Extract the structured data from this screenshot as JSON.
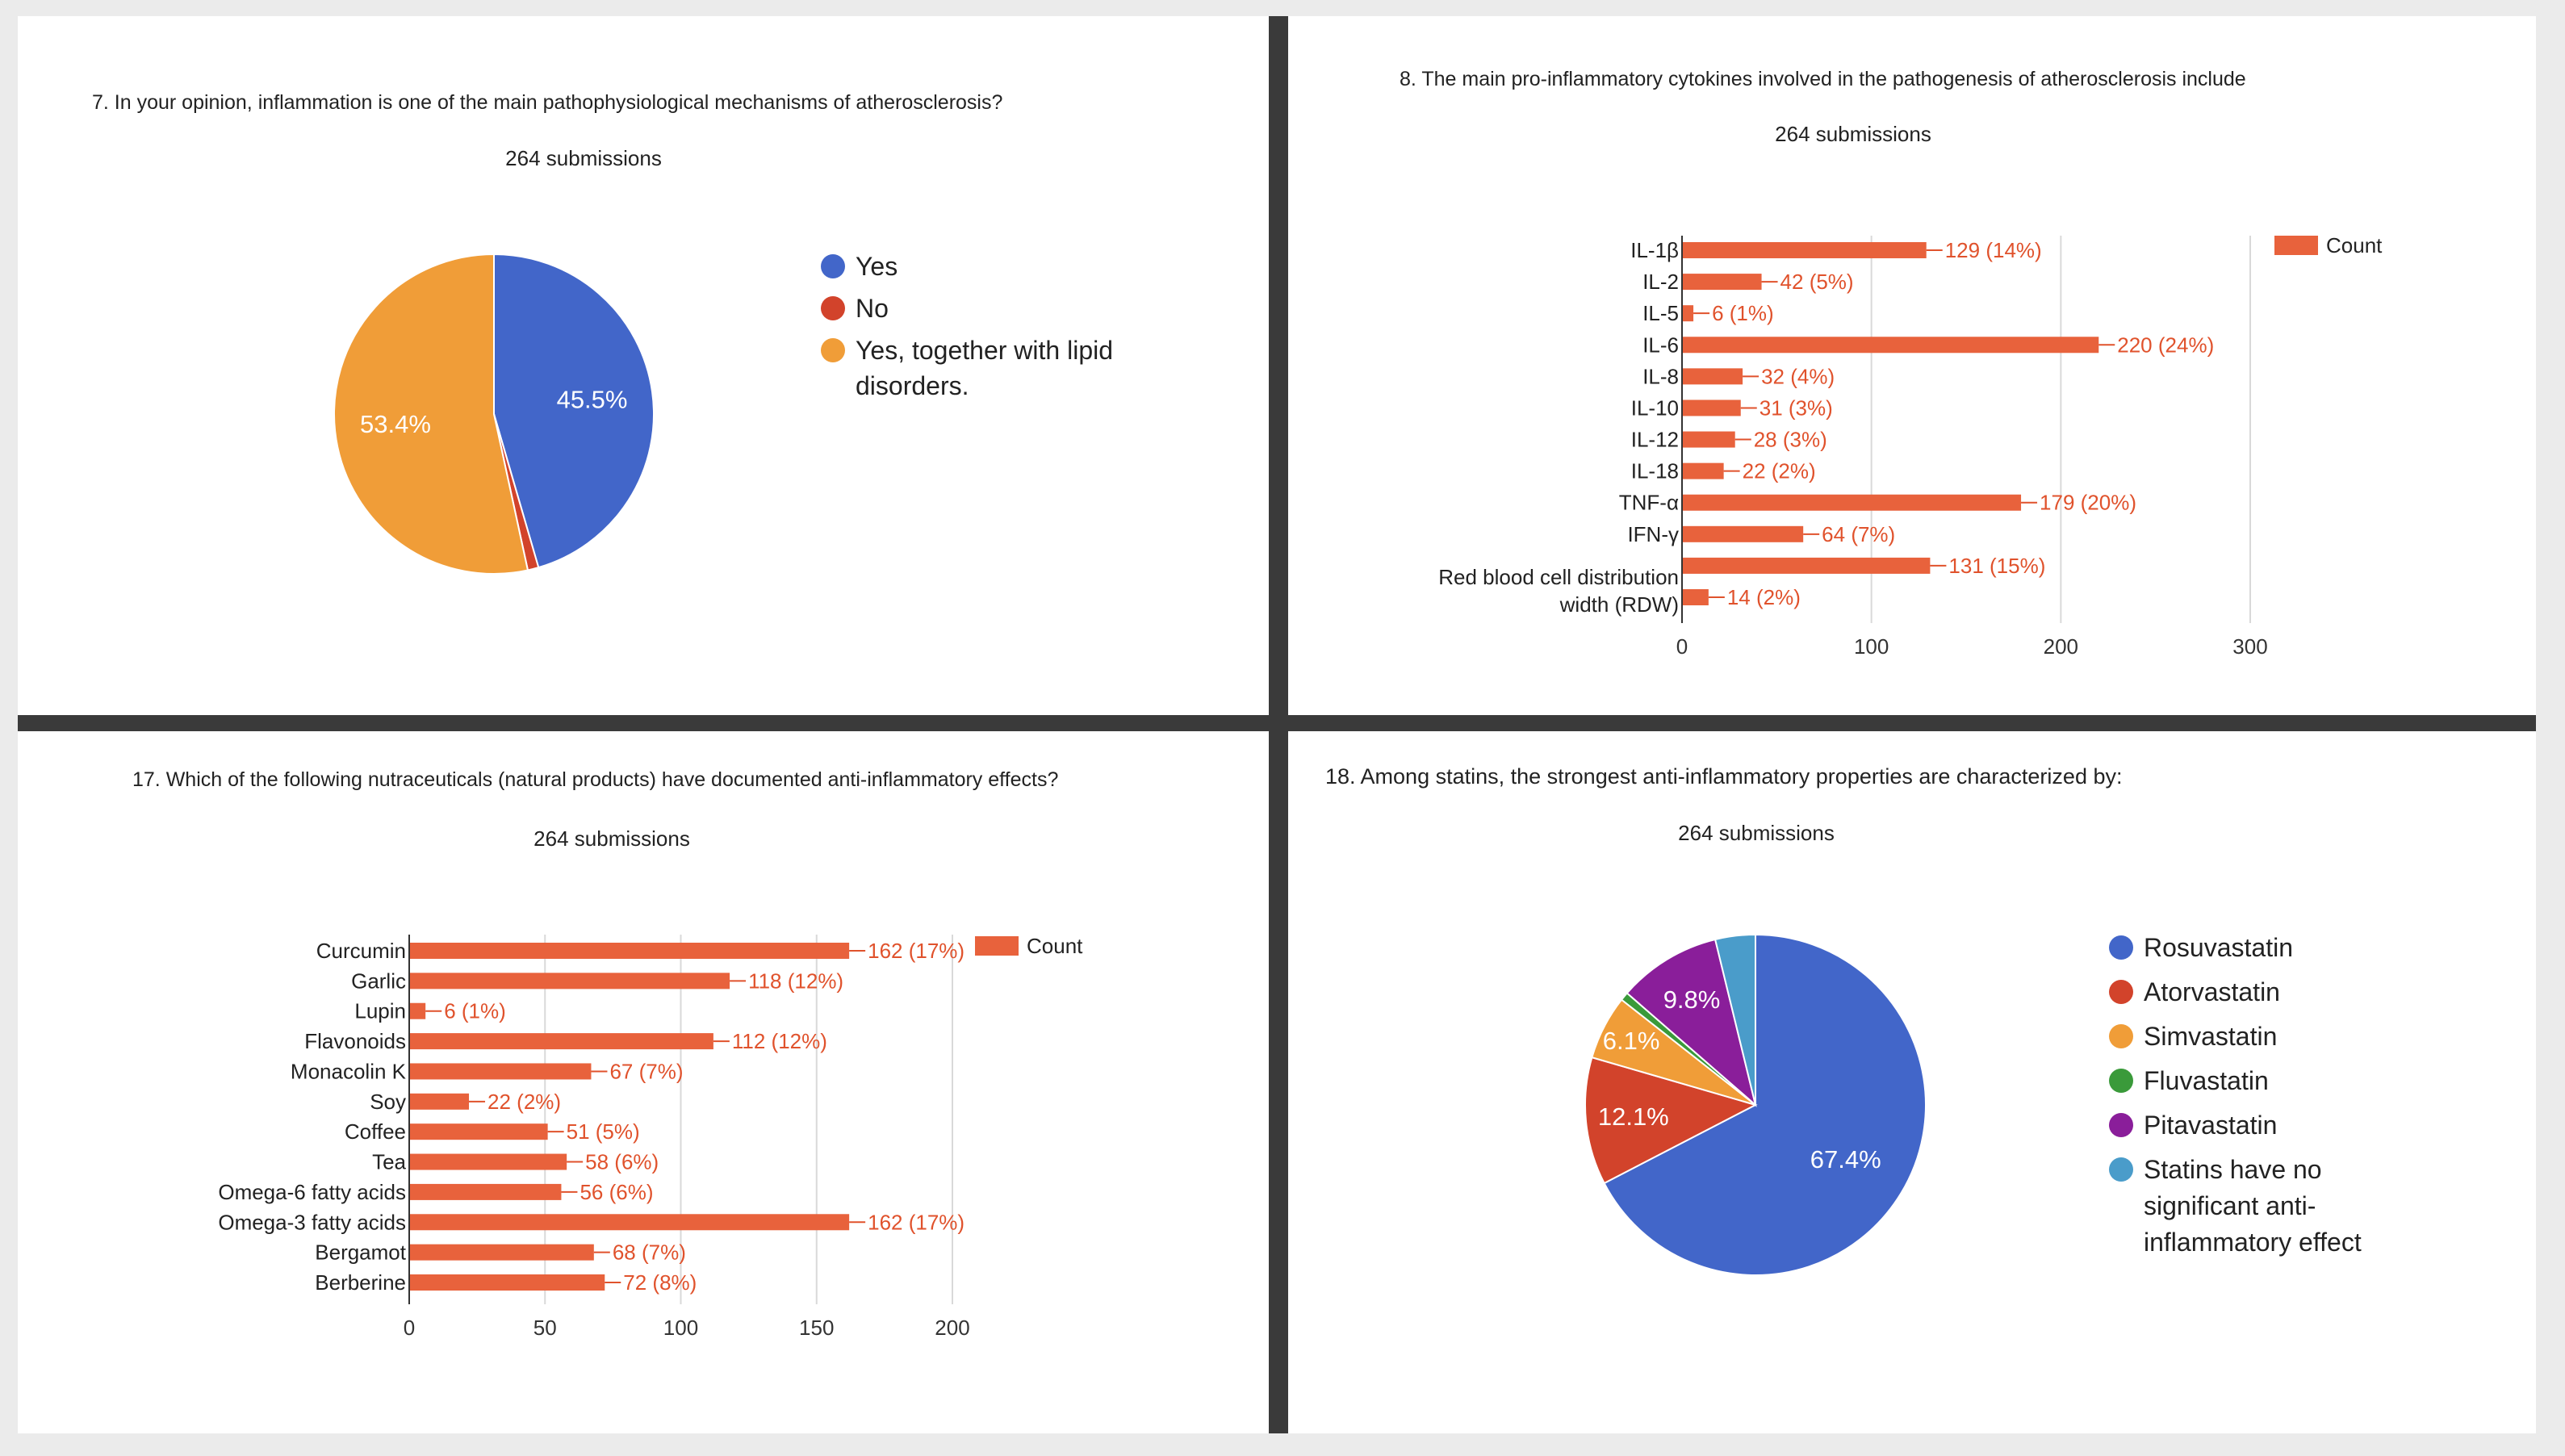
{
  "colors": {
    "bar": "#e8623c",
    "bar_label": "#e0522c",
    "axis_text": "#444444",
    "grid": "#d9d9d9",
    "pie1": [
      "#4266c9",
      "#d2432b",
      "#f09d38"
    ],
    "pie4": [
      "#4266c9",
      "#d2432b",
      "#f09d38",
      "#3a9a3a",
      "#8a1e9a",
      "#4a9cca"
    ]
  },
  "chart_data": [
    {
      "id": "q7",
      "type": "pie",
      "title": "7. In your opinion, inflammation is one of the main pathophysiological mechanisms of atherosclerosis?",
      "subtitle": "264 submissions",
      "labels": [
        "Yes",
        "No",
        "Yes, together with lipid disorders."
      ],
      "legend_lines": [
        [
          "Yes"
        ],
        [
          "No"
        ],
        [
          "Yes, together with lipid",
          "disorders."
        ]
      ],
      "values": [
        45.5,
        1.1,
        53.4
      ],
      "slice_labels": [
        "45.5%",
        "",
        "53.4%"
      ],
      "legend_position": "right"
    },
    {
      "id": "q8",
      "type": "bar",
      "orientation": "horizontal",
      "title": "8. The main pro-inflammatory cytokines involved in the pathogenesis of atherosclerosis include",
      "subtitle": "264 submissions",
      "categories": [
        "IL-1β",
        "IL-2",
        "IL-5",
        "IL-6",
        "IL-8",
        "IL-10",
        "IL-12",
        "IL-18",
        "TNF-α",
        "IFN-γ",
        "",
        "Red blood cell distribution width (RDW)"
      ],
      "category_lines": [
        [
          "IL-1β"
        ],
        [
          "IL-2"
        ],
        [
          "IL-5"
        ],
        [
          "IL-6"
        ],
        [
          "IL-8"
        ],
        [
          "IL-10"
        ],
        [
          "IL-12"
        ],
        [
          "IL-18"
        ],
        [
          "TNF-α"
        ],
        [
          "IFN-γ"
        ],
        [],
        [
          "Red blood cell distribution",
          "width (RDW)"
        ]
      ],
      "values": [
        129,
        42,
        6,
        220,
        32,
        31,
        28,
        22,
        179,
        64,
        131,
        14
      ],
      "value_labels": [
        "129 (14%)",
        "42 (5%)",
        "6 (1%)",
        "220 (24%)",
        "32 (4%)",
        "31 (3%)",
        "28 (3%)",
        "22 (2%)",
        "179 (20%)",
        "64 (7%)",
        "131 (15%)",
        "14 (2%)"
      ],
      "xlim": [
        0,
        300
      ],
      "xticks": [
        0,
        100,
        200,
        300
      ],
      "legend": "Count",
      "legend_position": "top-right"
    },
    {
      "id": "q17",
      "type": "bar",
      "orientation": "horizontal",
      "title": "17. Which of the following nutraceuticals (natural products) have documented anti-inflammatory effects?",
      "subtitle": "264 submissions",
      "categories": [
        "Curcumin",
        "Garlic",
        "Lupin",
        "Flavonoids",
        "Monacolin K",
        "Soy",
        "Coffee",
        "Tea",
        "Omega-6 fatty acids",
        "Omega-3 fatty acids",
        "Bergamot",
        "Berberine"
      ],
      "category_lines": [
        [
          "Curcumin"
        ],
        [
          "Garlic"
        ],
        [
          "Lupin"
        ],
        [
          "Flavonoids"
        ],
        [
          "Monacolin K"
        ],
        [
          "Soy"
        ],
        [
          "Coffee"
        ],
        [
          "Tea"
        ],
        [
          "Omega-6 fatty acids"
        ],
        [
          "Omega-3 fatty acids"
        ],
        [
          "Bergamot"
        ],
        [
          "Berberine"
        ]
      ],
      "values": [
        162,
        118,
        6,
        112,
        67,
        22,
        51,
        58,
        56,
        162,
        68,
        72
      ],
      "value_labels": [
        "162 (17%)",
        "118 (12%)",
        "6 (1%)",
        "112 (12%)",
        "67 (7%)",
        "22 (2%)",
        "51 (5%)",
        "58 (6%)",
        "56 (6%)",
        "162 (17%)",
        "68 (7%)",
        "72 (8%)"
      ],
      "xlim": [
        0,
        200
      ],
      "xticks": [
        0,
        50,
        100,
        150,
        200
      ],
      "legend": "Count",
      "legend_position": "top-right"
    },
    {
      "id": "q18",
      "type": "pie",
      "title": "18. Among statins, the strongest anti-inflammatory properties are characterized by:",
      "subtitle": "264 submissions",
      "labels": [
        "Rosuvastatin",
        "Atorvastatin",
        "Simvastatin",
        "Fluvastatin",
        "Pitavastatin",
        "Statins have no significant anti-inflammatory effect"
      ],
      "legend_lines": [
        [
          "Rosuvastatin"
        ],
        [
          "Atorvastatin"
        ],
        [
          "Simvastatin"
        ],
        [
          "Fluvastatin"
        ],
        [
          "Pitavastatin"
        ],
        [
          "Statins have no",
          "significant anti-",
          "inflammatory effect"
        ]
      ],
      "values": [
        67.4,
        12.1,
        6.1,
        0.8,
        9.8,
        3.8
      ],
      "slice_labels": [
        "67.4%",
        "12.1%",
        "6.1%",
        "",
        "9.8%",
        ""
      ],
      "legend_position": "right"
    }
  ]
}
